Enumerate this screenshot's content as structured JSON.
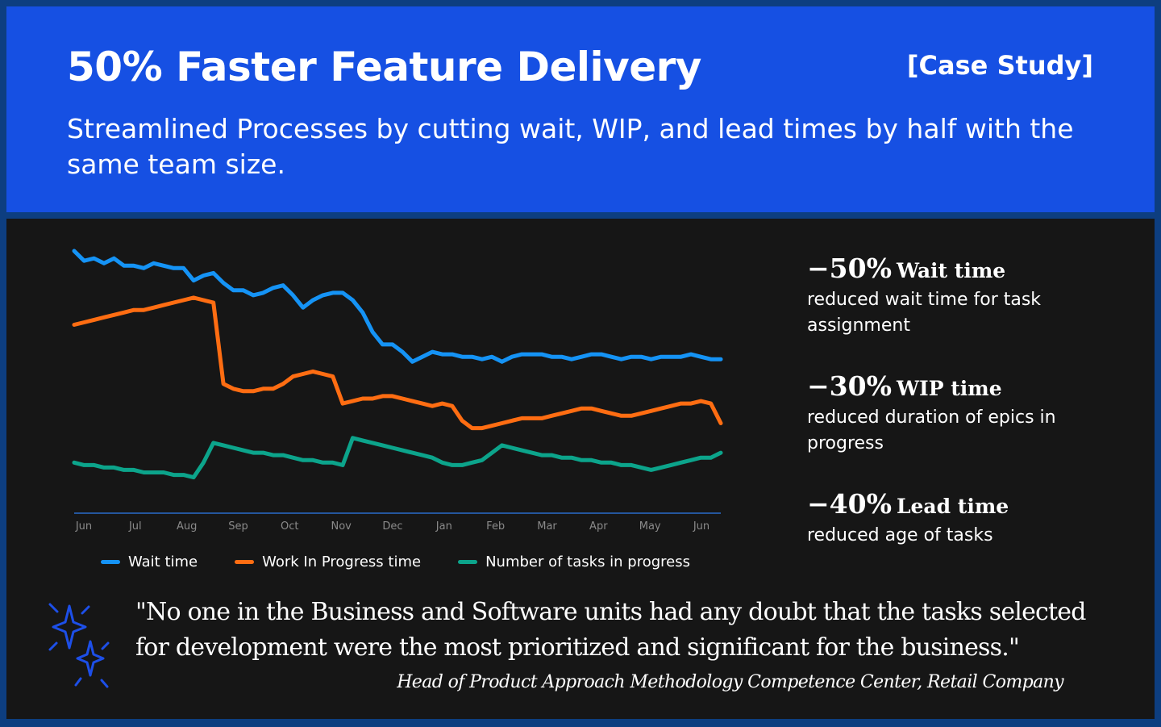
{
  "header": {
    "title": "50% Faster Feature Delivery",
    "tag": "[Case Study]",
    "subtitle": "Streamlined Processes by cutting wait, WIP, and lead times by half with the same team size."
  },
  "colors": {
    "header_bg": "#1650e3",
    "panel_bg": "#161616",
    "wait": "#1593f5",
    "wip": "#ff6d12",
    "tasks": "#0ca48b",
    "axis": "#2e7df0"
  },
  "chart_data": {
    "type": "line",
    "title": "",
    "xlabel": "",
    "ylabel": "",
    "categories": [
      "Jun",
      "Jul",
      "Aug",
      "Sep",
      "Oct",
      "Nov",
      "Dec",
      "Jan",
      "Feb",
      "Mar",
      "Apr",
      "May",
      "Jun"
    ],
    "x": [
      0,
      0.4,
      0.8,
      1.2,
      1.6,
      2.0,
      2.4,
      2.8,
      3.2,
      3.6,
      4.0,
      4.4,
      4.8,
      5.2,
      5.6,
      6.0,
      6.4,
      6.8,
      7.2,
      7.6,
      8.0,
      8.4,
      8.8,
      9.2,
      9.6,
      10.0,
      10.4,
      10.8,
      11.2,
      11.6,
      12.0,
      12.4,
      12.8,
      13.2,
      13.6,
      14.0,
      14.4,
      14.8,
      15.2,
      15.6,
      16.0,
      16.4,
      16.8,
      17.2,
      17.6,
      18.0,
      18.4,
      18.8,
      19.2,
      19.6,
      20.0,
      20.4,
      20.8,
      21.2,
      21.6,
      22.0,
      22.4,
      22.8,
      23.2,
      23.6,
      24.0,
      24.4,
      24.8,
      25.2,
      25.6,
      26.0
    ],
    "xlim": [
      0,
      26
    ],
    "ylim": [
      0,
      100
    ],
    "grid": false,
    "legend_position": "bottom",
    "series": [
      {
        "name": "Wait time",
        "color": "#1593f5",
        "values": [
          100,
          96,
          97,
          95,
          97,
          94,
          94,
          93,
          95,
          94,
          93,
          93,
          88,
          90,
          91,
          87,
          84,
          84,
          82,
          83,
          85,
          86,
          82,
          77,
          80,
          82,
          83,
          83,
          80,
          75,
          67,
          62,
          62,
          59,
          55,
          57,
          59,
          58,
          58,
          57,
          57,
          56,
          57,
          55,
          57,
          58,
          58,
          58,
          57,
          57,
          56,
          57,
          58,
          58,
          57,
          56,
          57,
          57,
          56,
          57,
          57,
          57,
          58,
          57,
          56,
          56
        ]
      },
      {
        "name": "Work In Progress time",
        "color": "#ff6d12",
        "values": [
          70,
          71,
          72,
          73,
          74,
          75,
          76,
          76,
          77,
          78,
          79,
          80,
          81,
          80,
          79,
          46,
          44,
          43,
          43,
          44,
          44,
          46,
          49,
          50,
          51,
          50,
          49,
          38,
          39,
          40,
          40,
          41,
          41,
          40,
          39,
          38,
          37,
          38,
          37,
          31,
          28,
          28,
          29,
          30,
          31,
          32,
          32,
          32,
          33,
          34,
          35,
          36,
          36,
          35,
          34,
          33,
          33,
          34,
          35,
          36,
          37,
          38,
          38,
          39,
          38,
          30
        ]
      },
      {
        "name": "Number of tasks in progress",
        "color": "#0ca48b",
        "values": [
          14,
          13,
          13,
          12,
          12,
          11,
          11,
          10,
          10,
          10,
          9,
          9,
          8,
          14,
          22,
          21,
          20,
          19,
          18,
          18,
          17,
          17,
          16,
          15,
          15,
          14,
          14,
          13,
          24,
          23,
          22,
          21,
          20,
          19,
          18,
          17,
          16,
          14,
          13,
          13,
          14,
          15,
          18,
          21,
          20,
          19,
          18,
          17,
          17,
          16,
          16,
          15,
          15,
          14,
          14,
          13,
          13,
          12,
          11,
          12,
          13,
          14,
          15,
          16,
          16,
          18
        ]
      }
    ]
  },
  "stats": [
    {
      "value": "−50%",
      "label": "Wait time",
      "desc": "reduced wait time for task assignment"
    },
    {
      "value": "−30%",
      "label": "WIP time",
      "desc": "reduced duration of epics in progress"
    },
    {
      "value": "−40%",
      "label": "Lead time",
      "desc": "reduced age of tasks"
    }
  ],
  "quote": {
    "text": "\"No one in the Business and Software units had any doubt that the tasks selected for development were the most prioritized and significant for the business.\"",
    "attribution": "Head of Product Approach Methodology Competence Center, Retail Company",
    "icon": "sparkles-icon"
  }
}
